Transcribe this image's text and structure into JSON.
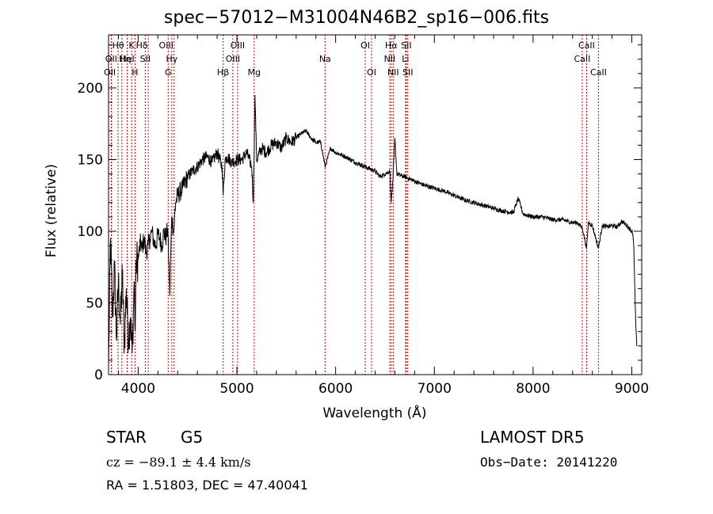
{
  "chart_data": {
    "type": "line",
    "title": "spec−57012−M31004N46B2_sp16−006.fits",
    "xlabel": "Wavelength (Å)",
    "ylabel": "Flux (relative)",
    "xlim": [
      3700,
      9100
    ],
    "ylim": [
      0,
      237
    ],
    "xticks": [
      4000,
      5000,
      6000,
      7000,
      8000,
      9000
    ],
    "yticks": [
      0,
      50,
      100,
      150,
      200
    ],
    "grid": false,
    "series": [
      {
        "x": [
          3700,
          3720,
          3740,
          3760,
          3780,
          3800,
          3820,
          3840,
          3860,
          3880,
          3900,
          3920,
          3940,
          3960,
          3970,
          3980,
          4000,
          4020,
          4040,
          4060,
          4080,
          4100,
          4120,
          4140,
          4160,
          4180,
          4200,
          4220,
          4240,
          4260,
          4280,
          4300,
          4320,
          4340,
          4360,
          4380,
          4400,
          4450,
          4500,
          4550,
          4600,
          4650,
          4700,
          4750,
          4800,
          4850,
          4861,
          4880,
          4900,
          4950,
          5000,
          5050,
          5100,
          5150,
          5167,
          5183,
          5200,
          5250,
          5300,
          5350,
          5400,
          5450,
          5500,
          5550,
          5600,
          5650,
          5700,
          5750,
          5800,
          5850,
          5893,
          5950,
          6000,
          6100,
          6200,
          6300,
          6400,
          6450,
          6500,
          6550,
          6563,
          6580,
          6600,
          6620,
          6700,
          6800,
          6900,
          7000,
          7100,
          7200,
          7300,
          7400,
          7500,
          7600,
          7700,
          7800,
          7850,
          7900,
          8000,
          8100,
          8200,
          8300,
          8400,
          8450,
          8500,
          8542,
          8560,
          8600,
          8662,
          8700,
          8750,
          8800,
          8850,
          8900,
          8950,
          9000,
          9010,
          9020,
          9030,
          9040,
          9050
        ],
        "y": [
          5,
          95,
          40,
          75,
          25,
          65,
          35,
          70,
          20,
          60,
          25,
          40,
          15,
          65,
          30,
          80,
          80,
          92,
          88,
          95,
          85,
          90,
          95,
          100,
          92,
          90,
          98,
          95,
          90,
          100,
          95,
          102,
          55,
          110,
          100,
          120,
          125,
          130,
          138,
          142,
          145,
          150,
          152,
          148,
          155,
          145,
          125,
          150,
          152,
          148,
          150,
          150,
          155,
          145,
          120,
          195,
          150,
          158,
          155,
          160,
          162,
          158,
          165,
          162,
          165,
          168,
          170,
          165,
          162,
          162,
          145,
          158,
          155,
          152,
          148,
          145,
          142,
          138,
          140,
          142,
          120,
          135,
          165,
          140,
          138,
          135,
          132,
          130,
          128,
          125,
          122,
          120,
          118,
          116,
          114,
          113,
          123,
          112,
          110,
          110,
          108,
          108,
          106,
          106,
          102,
          88,
          106,
          104,
          88,
          104,
          103,
          104,
          103,
          107,
          104,
          100,
          98,
          90,
          60,
          35,
          20
        ]
      }
    ],
    "spectral_lines": [
      {
        "name": "Hθ",
        "wavelength": 3797,
        "row": 1,
        "dx": 0
      },
      {
        "name": "OII",
        "wavelength": 3727,
        "row": 2,
        "dx": 0
      },
      {
        "name": "OII",
        "wavelength": 3729,
        "row": 3,
        "dx": -2
      },
      {
        "name": "Hη",
        "wavelength": 3835,
        "row": 2,
        "dx": 4
      },
      {
        "name": "HeI",
        "wavelength": 3889,
        "row": 2,
        "dx": 0
      },
      {
        "name": "K",
        "wavelength": 3934,
        "row": 1,
        "dx": 0
      },
      {
        "name": "H",
        "wavelength": 3968,
        "row": 3,
        "dx": 0
      },
      {
        "name": "SII",
        "wavelength": 4072,
        "row": 2,
        "dx": 0
      },
      {
        "name": "Hδ",
        "wavelength": 4102,
        "row": 1,
        "dx": -8
      },
      {
        "name": "G",
        "wavelength": 4304,
        "row": 3,
        "dx": 0
      },
      {
        "name": "OIII",
        "wavelength": 4364,
        "row": 1,
        "dx": -10
      },
      {
        "name": "Hγ",
        "wavelength": 4341,
        "row": 2,
        "dx": 0
      },
      {
        "name": "Hβ",
        "wavelength": 4861,
        "row": 3,
        "dx": 0
      },
      {
        "name": "OIII",
        "wavelength": 4959,
        "row": 2,
        "dx": 0
      },
      {
        "name": "OIII",
        "wavelength": 5007,
        "row": 1,
        "dx": 0
      },
      {
        "name": "Mg",
        "wavelength": 5175,
        "row": 3,
        "dx": 0
      },
      {
        "name": "Na",
        "wavelength": 5893,
        "row": 2,
        "dx": 0
      },
      {
        "name": "OI",
        "wavelength": 6300,
        "row": 1,
        "dx": 0
      },
      {
        "name": "OI",
        "wavelength": 6364,
        "row": 3,
        "dx": 0
      },
      {
        "name": "NII",
        "wavelength": 6548,
        "row": 2,
        "dx": 0
      },
      {
        "name": "Hα",
        "wavelength": 6563,
        "row": 1,
        "dx": 0
      },
      {
        "name": "NII",
        "wavelength": 6583,
        "row": 3,
        "dx": 0
      },
      {
        "name": "SII",
        "wavelength": 6716,
        "row": 1,
        "dx": 0
      },
      {
        "name": "Li",
        "wavelength": 6708,
        "row": 2,
        "dx": 0
      },
      {
        "name": "SII",
        "wavelength": 6731,
        "row": 3,
        "dx": 0
      },
      {
        "name": "CaII",
        "wavelength": 8498,
        "row": 2,
        "dx": 0
      },
      {
        "name": "CaII",
        "wavelength": 8542,
        "row": 1,
        "dx": 0
      },
      {
        "name": "CaII",
        "wavelength": 8662,
        "row": 3,
        "dx": 0
      }
    ],
    "line_color": "#000000",
    "marker_color": "#c80000"
  },
  "info": {
    "class": "STAR",
    "subclass": "G5",
    "survey": "LAMOST DR5",
    "redshift": "cz = −89.1 ± 4.4 km/s",
    "obs_date": "Obs−Date: 20141220",
    "coords": "RA =   1.51803, DEC =  47.40041"
  }
}
